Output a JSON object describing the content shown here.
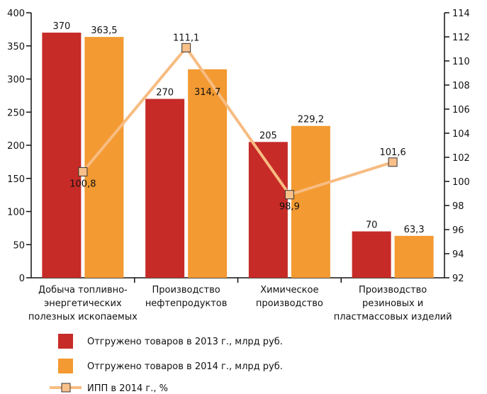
{
  "chart_data": {
    "type": "bar",
    "categories": [
      [
        "Добыча топливно-",
        "энергетических",
        "полезных ископаемых"
      ],
      [
        "Производство",
        "нефтепродуктов"
      ],
      [
        "Химическое",
        "производство"
      ],
      [
        "Производство",
        "резиновых и",
        "пластмассовых изделий"
      ]
    ],
    "series": [
      {
        "name": "Отгружено товаров в 2013 г., млрд руб.",
        "type": "bar",
        "axis": "left",
        "color": "#c62b27",
        "values": [
          370,
          270,
          205,
          70
        ],
        "labels": [
          "370",
          "270",
          "205",
          "70"
        ]
      },
      {
        "name": "Отгружено товаров в 2014 г., млрд руб.",
        "type": "bar",
        "axis": "left",
        "color": "#f39a32",
        "values": [
          363.5,
          314.7,
          229.2,
          63.3
        ],
        "labels": [
          "363,5",
          "314,7",
          "229,2",
          "63,3"
        ]
      },
      {
        "name": "ИПП в 2014 г., %",
        "type": "line",
        "axis": "right",
        "color": "#f7bc82",
        "marker_fill": "#fac08a",
        "values": [
          100.8,
          111.1,
          98.9,
          101.6
        ],
        "labels": [
          "100,8",
          "111,1",
          "98,9",
          "101,6"
        ]
      }
    ],
    "y_left": {
      "min": 0,
      "max": 400,
      "ticks": [
        "0",
        "50",
        "100",
        "150",
        "200",
        "250",
        "300",
        "350",
        "400"
      ]
    },
    "y_right": {
      "min": 92,
      "max": 114,
      "ticks": [
        "92",
        "94",
        "96",
        "98",
        "100",
        "102",
        "104",
        "106",
        "108",
        "110",
        "112",
        "114"
      ]
    },
    "title": "",
    "xlabel": "",
    "ylabel": "",
    "legend_position": "bottom-left"
  }
}
